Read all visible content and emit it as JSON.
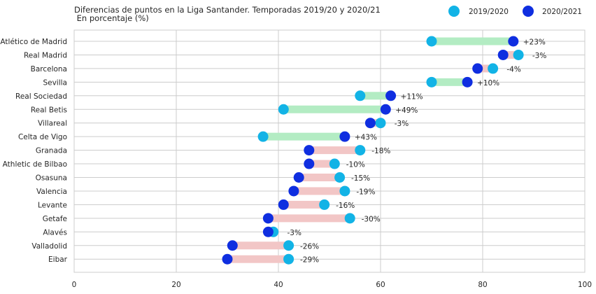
{
  "chart_data": {
    "type": "dumbbell",
    "title": "Diferencias de puntos en la Liga Santander. Temporadas 2019/20 y 2020/21",
    "subtitle": " En porcentaje (%)",
    "xlim": [
      0,
      100
    ],
    "xticks": [
      "0",
      "20",
      "40",
      "60",
      "80",
      "100"
    ],
    "grid": true,
    "legend_position": "top-right",
    "series": [
      {
        "name": "2019/2020",
        "color": "#12b3e6"
      },
      {
        "name": "2020/2021",
        "color": "#0f2ee0"
      }
    ],
    "colors": {
      "increase": "#b3ecc3",
      "decrease": "#f2c6c6"
    },
    "categories": [
      "Atlético de Madrid",
      "Real Madrid",
      "Barcelona",
      "Sevilla",
      "Real Sociedad",
      "Real Betis",
      "Villareal",
      "Celta de Vigo",
      "Granada",
      "Athletic de Bilbao",
      "Osasuna",
      "Valencia",
      "Levante",
      "Getafe",
      "Alavés",
      "Valladolid",
      "Eibar"
    ],
    "values_2019_2020": [
      70,
      87,
      82,
      70,
      56,
      41,
      60,
      37,
      56,
      51,
      52,
      53,
      49,
      54,
      39,
      42,
      42
    ],
    "values_2020_2021": [
      86,
      84,
      79,
      77,
      62,
      61,
      58,
      53,
      46,
      46,
      44,
      43,
      41,
      38,
      38,
      31,
      30
    ],
    "labels": [
      "+23%",
      "-3%",
      "-4%",
      "+10%",
      "+11%",
      "+49%",
      "-3%",
      "+43%",
      "-18%",
      "-10%",
      "-15%",
      "-19%",
      "-16%",
      "-30%",
      "-3%",
      "-26%",
      "-29%"
    ]
  }
}
